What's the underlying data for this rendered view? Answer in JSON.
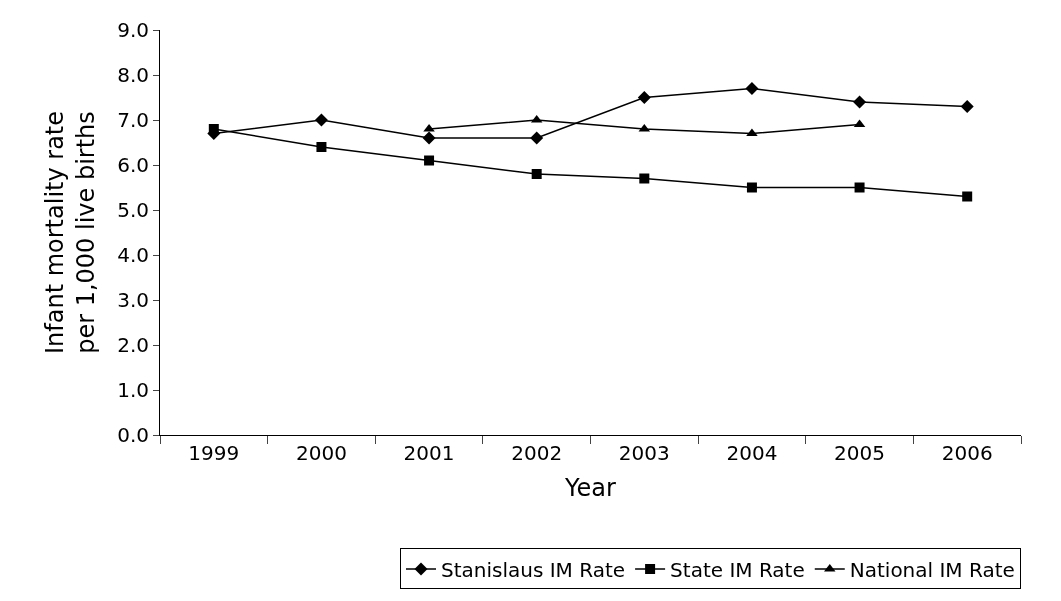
{
  "chart_data": {
    "type": "line",
    "xlabel": "Year",
    "ylabel": "Infant mortality rate\nper 1,000 live births",
    "categories": [
      "1999",
      "2000",
      "2001",
      "2002",
      "2003",
      "2004",
      "2005",
      "2006"
    ],
    "series": [
      {
        "name": "Stanislaus IM Rate",
        "color": "#000000",
        "marker": "diamond",
        "values": [
          6.7,
          7.0,
          6.6,
          6.6,
          7.5,
          7.7,
          7.4,
          7.3
        ]
      },
      {
        "name": "State IM Rate",
        "color": "#000000",
        "marker": "square",
        "values": [
          6.8,
          6.4,
          6.1,
          5.8,
          5.7,
          5.5,
          5.5,
          5.3
        ]
      },
      {
        "name": "National IM Rate",
        "color": "#000000",
        "marker": "triangle",
        "values": [
          null,
          null,
          6.8,
          7.0,
          6.8,
          6.7,
          6.9,
          null
        ]
      }
    ],
    "ylim": [
      0,
      9
    ],
    "yticks": [
      {
        "value": 0,
        "label": "0.0"
      },
      {
        "value": 1,
        "label": "1.0"
      },
      {
        "value": 2,
        "label": "2.0"
      },
      {
        "value": 3,
        "label": "3.0"
      },
      {
        "value": 4,
        "label": "4.0"
      },
      {
        "value": 5,
        "label": "5.0"
      },
      {
        "value": 6,
        "label": "6.0"
      },
      {
        "value": 7,
        "label": "7.0"
      },
      {
        "value": 8,
        "label": "8.0"
      },
      {
        "value": 9,
        "label": "9.0"
      }
    ],
    "grid": false,
    "legend": "bottom",
    "line_style": "solid"
  }
}
